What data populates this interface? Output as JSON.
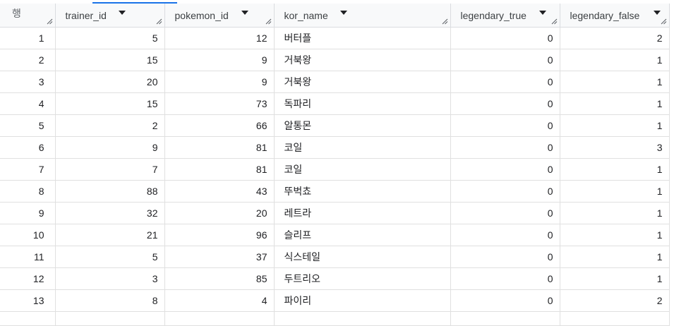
{
  "table": {
    "row_header": "행",
    "columns": [
      {
        "key": "trainer_id",
        "label": "trainer_id",
        "align": "num"
      },
      {
        "key": "pokemon_id",
        "label": "pokemon_id",
        "align": "num"
      },
      {
        "key": "kor_name",
        "label": "kor_name",
        "align": "txt"
      },
      {
        "key": "legendary_true",
        "label": "legendary_true",
        "align": "num"
      },
      {
        "key": "legendary_false",
        "label": "legendary_false",
        "align": "num"
      }
    ],
    "rows": [
      {
        "row": "1",
        "trainer_id": "5",
        "pokemon_id": "12",
        "kor_name": "버터플",
        "legendary_true": "0",
        "legendary_false": "2"
      },
      {
        "row": "2",
        "trainer_id": "15",
        "pokemon_id": "9",
        "kor_name": "거북왕",
        "legendary_true": "0",
        "legendary_false": "1"
      },
      {
        "row": "3",
        "trainer_id": "20",
        "pokemon_id": "9",
        "kor_name": "거북왕",
        "legendary_true": "0",
        "legendary_false": "1"
      },
      {
        "row": "4",
        "trainer_id": "15",
        "pokemon_id": "73",
        "kor_name": "독파리",
        "legendary_true": "0",
        "legendary_false": "1"
      },
      {
        "row": "5",
        "trainer_id": "2",
        "pokemon_id": "66",
        "kor_name": "알통몬",
        "legendary_true": "0",
        "legendary_false": "1"
      },
      {
        "row": "6",
        "trainer_id": "9",
        "pokemon_id": "81",
        "kor_name": "코일",
        "legendary_true": "0",
        "legendary_false": "3"
      },
      {
        "row": "7",
        "trainer_id": "7",
        "pokemon_id": "81",
        "kor_name": "코일",
        "legendary_true": "0",
        "legendary_false": "1"
      },
      {
        "row": "8",
        "trainer_id": "88",
        "pokemon_id": "43",
        "kor_name": "뚜벅쵸",
        "legendary_true": "0",
        "legendary_false": "1"
      },
      {
        "row": "9",
        "trainer_id": "32",
        "pokemon_id": "20",
        "kor_name": "레트라",
        "legendary_true": "0",
        "legendary_false": "1"
      },
      {
        "row": "10",
        "trainer_id": "21",
        "pokemon_id": "96",
        "kor_name": "슬리프",
        "legendary_true": "0",
        "legendary_false": "1"
      },
      {
        "row": "11",
        "trainer_id": "5",
        "pokemon_id": "37",
        "kor_name": "식스테일",
        "legendary_true": "0",
        "legendary_false": "1"
      },
      {
        "row": "12",
        "trainer_id": "3",
        "pokemon_id": "85",
        "kor_name": "두트리오",
        "legendary_true": "0",
        "legendary_false": "1"
      },
      {
        "row": "13",
        "trainer_id": "8",
        "pokemon_id": "4",
        "kor_name": "파이리",
        "legendary_true": "0",
        "legendary_false": "2"
      },
      {
        "row": "",
        "trainer_id": "",
        "pokemon_id": "",
        "kor_name": "",
        "legendary_true": "",
        "legendary_false": ""
      }
    ]
  },
  "colors": {
    "accent": "#1a73e8",
    "header_bg": "#f8f9fa",
    "grid": "#e0e0e0"
  }
}
